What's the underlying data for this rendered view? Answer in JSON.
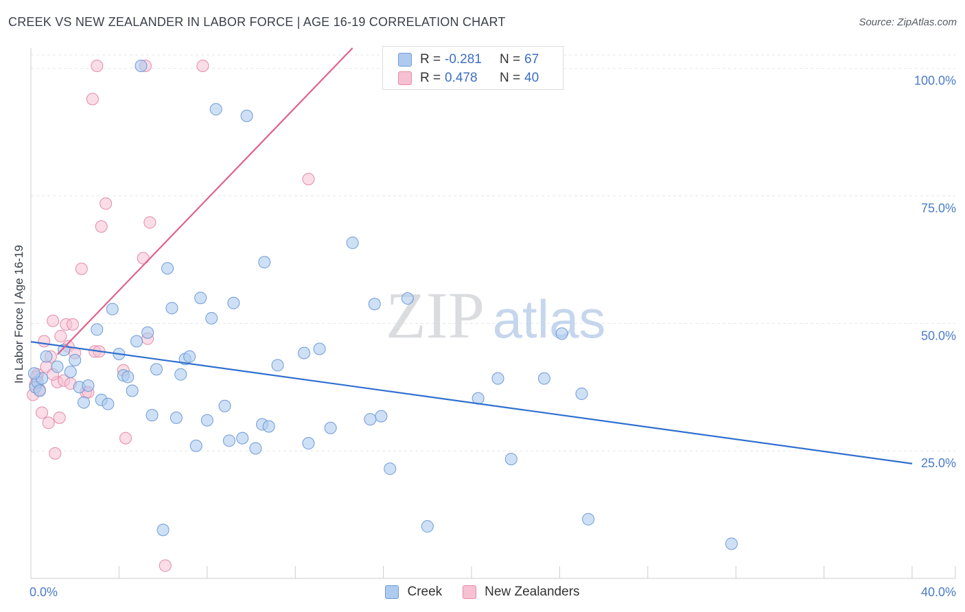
{
  "title": "CREEK VS NEW ZEALANDER IN LABOR FORCE | AGE 16-19 CORRELATION CHART",
  "source": "Source: ZipAtlas.com",
  "watermark": {
    "zip": "ZIP",
    "atlas": "atlas"
  },
  "legend": {
    "series1": {
      "r_label": "R = ",
      "r_value": "-0.281",
      "n_label": "N = ",
      "n_value": "67"
    },
    "series2": {
      "r_label": "R = ",
      "r_value": "0.478",
      "n_label": "N = ",
      "n_value": "40"
    }
  },
  "bottom_legend": {
    "series1": "Creek",
    "series2": "New Zealanders"
  },
  "colors": {
    "creek_fill": "#aecbef",
    "creek_stroke": "#6d9ad6",
    "creek_line": "#2f6fcf",
    "nz_fill": "#f6c1d2",
    "nz_stroke": "#e38aa8",
    "nz_line": "#e0608c"
  },
  "chart_data": {
    "type": "scatter",
    "title": "CREEK VS NEW ZEALANDER IN LABOR FORCE | AGE 16-19 CORRELATION CHART",
    "xlabel": "",
    "ylabel": "In Labor Force | Age 16-19",
    "xlim": [
      0,
      40
    ],
    "ylim": [
      0,
      104
    ],
    "x_tick_labels": [
      "0.0%",
      "40.0%"
    ],
    "y_ticks": [
      25,
      50,
      75,
      100
    ],
    "y_tick_labels": [
      "25.0%",
      "50.0%",
      "75.0%",
      "100.0%"
    ],
    "grid": true,
    "series": [
      {
        "name": "Creek",
        "points": [
          [
            0.2,
            37.5
          ],
          [
            0.3,
            38.5
          ],
          [
            0.5,
            39.2
          ],
          [
            0.7,
            43.5
          ],
          [
            1.2,
            41.5
          ],
          [
            1.5,
            44.8
          ],
          [
            1.8,
            40.5
          ],
          [
            2.0,
            42.8
          ],
          [
            2.2,
            37.5
          ],
          [
            2.4,
            34.5
          ],
          [
            2.6,
            37.8
          ],
          [
            3.0,
            48.8
          ],
          [
            3.2,
            35.0
          ],
          [
            3.5,
            34.2
          ],
          [
            3.7,
            52.8
          ],
          [
            4.0,
            44.0
          ],
          [
            4.2,
            39.8
          ],
          [
            4.4,
            39.5
          ],
          [
            4.6,
            36.8
          ],
          [
            4.8,
            46.5
          ],
          [
            5.0,
            100.5
          ],
          [
            5.3,
            48.2
          ],
          [
            5.5,
            32.0
          ],
          [
            5.7,
            41.0
          ],
          [
            6.0,
            9.5
          ],
          [
            6.2,
            60.8
          ],
          [
            6.4,
            53.0
          ],
          [
            6.6,
            31.5
          ],
          [
            6.8,
            40.0
          ],
          [
            7.0,
            43.0
          ],
          [
            7.2,
            43.5
          ],
          [
            7.5,
            26.0
          ],
          [
            7.7,
            55.0
          ],
          [
            8.0,
            31.0
          ],
          [
            8.2,
            51.0
          ],
          [
            8.4,
            92.0
          ],
          [
            8.8,
            33.8
          ],
          [
            9.0,
            27.0
          ],
          [
            9.2,
            54.0
          ],
          [
            9.6,
            27.5
          ],
          [
            9.8,
            90.7
          ],
          [
            10.2,
            25.5
          ],
          [
            10.5,
            30.2
          ],
          [
            10.6,
            62.0
          ],
          [
            10.8,
            29.8
          ],
          [
            11.2,
            41.8
          ],
          [
            12.4,
            44.2
          ],
          [
            12.6,
            26.5
          ],
          [
            13.1,
            45.0
          ],
          [
            13.6,
            29.5
          ],
          [
            14.6,
            65.8
          ],
          [
            15.4,
            31.2
          ],
          [
            15.6,
            53.8
          ],
          [
            15.9,
            31.8
          ],
          [
            16.3,
            21.5
          ],
          [
            17.1,
            54.9
          ],
          [
            18.0,
            10.2
          ],
          [
            20.3,
            35.3
          ],
          [
            21.2,
            39.2
          ],
          [
            21.8,
            23.4
          ],
          [
            23.3,
            39.2
          ],
          [
            24.1,
            48.0
          ],
          [
            25.0,
            36.2
          ],
          [
            25.3,
            11.6
          ],
          [
            31.8,
            6.8
          ],
          [
            0.15,
            40.2
          ],
          [
            0.4,
            36.8
          ]
        ],
        "trend": {
          "x": [
            0,
            40
          ],
          "y": [
            46.4,
            22.5
          ]
        }
      },
      {
        "name": "New Zealanders",
        "points": [
          [
            0.1,
            36.0
          ],
          [
            0.2,
            38.0
          ],
          [
            0.3,
            40.0
          ],
          [
            0.4,
            37.0
          ],
          [
            0.5,
            32.5
          ],
          [
            0.6,
            46.5
          ],
          [
            0.7,
            41.5
          ],
          [
            0.8,
            30.5
          ],
          [
            0.9,
            43.5
          ],
          [
            1.0,
            50.5
          ],
          [
            1.1,
            24.5
          ],
          [
            1.2,
            38.5
          ],
          [
            1.3,
            31.5
          ],
          [
            1.35,
            47.5
          ],
          [
            1.5,
            38.8
          ],
          [
            1.6,
            49.8
          ],
          [
            1.7,
            45.5
          ],
          [
            1.8,
            38.2
          ],
          [
            1.9,
            49.8
          ],
          [
            2.0,
            44.2
          ],
          [
            2.3,
            60.7
          ],
          [
            2.5,
            36.5
          ],
          [
            2.6,
            36.5
          ],
          [
            2.8,
            94.0
          ],
          [
            2.9,
            44.5
          ],
          [
            3.0,
            100.5
          ],
          [
            3.1,
            44.5
          ],
          [
            3.2,
            69.0
          ],
          [
            3.4,
            73.5
          ],
          [
            4.2,
            40.8
          ],
          [
            4.3,
            27.5
          ],
          [
            5.1,
            62.8
          ],
          [
            5.2,
            100.5
          ],
          [
            5.3,
            47.0
          ],
          [
            5.4,
            69.8
          ],
          [
            6.1,
            2.5
          ],
          [
            7.8,
            100.5
          ],
          [
            12.6,
            78.3
          ],
          [
            0.25,
            39.5
          ],
          [
            1.0,
            40.0
          ]
        ],
        "trend": {
          "x": [
            1.2,
            14.6
          ],
          "y": [
            43.9,
            104.0
          ]
        }
      }
    ]
  }
}
